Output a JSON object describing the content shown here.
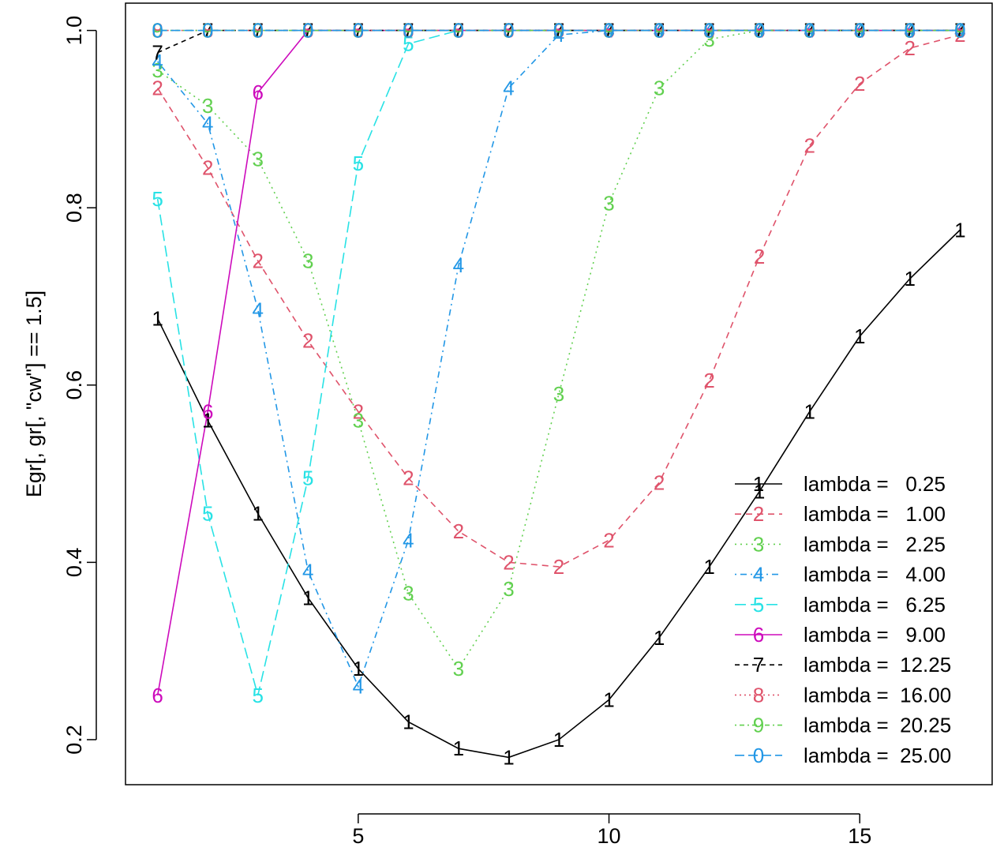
{
  "chart_data": {
    "type": "line",
    "title": "",
    "xlabel": "",
    "ylabel": "Egr[, gr[, \"cw\"] == 1.5]",
    "xlim": [
      0.36,
      17.64
    ],
    "ylim": [
      0.1492,
      1.0308
    ],
    "x_ticks": [
      5,
      10,
      15
    ],
    "x_tick_labels": [
      "5",
      "10",
      "15"
    ],
    "y_ticks": [
      0.2,
      0.4,
      0.6,
      0.8,
      1.0
    ],
    "y_tick_labels": [
      "0.2",
      "0.4",
      "0.6",
      "0.8",
      "1.0"
    ],
    "grid": false,
    "legend_position": "bottom-right",
    "x": [
      1,
      2,
      3,
      4,
      5,
      6,
      7,
      8,
      9,
      10,
      11,
      12,
      13,
      14,
      15,
      16,
      17
    ],
    "series": [
      {
        "name": "lambda =   0.25",
        "symbol": "1",
        "color": "#000000",
        "dash": "",
        "values": [
          0.675,
          0.56,
          0.455,
          0.36,
          0.28,
          0.22,
          0.19,
          0.18,
          0.2,
          0.245,
          0.315,
          0.395,
          0.48,
          0.57,
          0.655,
          0.72,
          0.775
        ]
      },
      {
        "name": "lambda =   1.00",
        "symbol": "2",
        "color": "#DF536B",
        "dash": "8,6",
        "values": [
          0.935,
          0.845,
          0.74,
          0.65,
          0.57,
          0.495,
          0.435,
          0.4,
          0.395,
          0.425,
          0.49,
          0.605,
          0.745,
          0.87,
          0.94,
          0.98,
          0.995
        ]
      },
      {
        "name": "lambda =   2.25",
        "symbol": "3",
        "color": "#61D04F",
        "dash": "2,5",
        "values": [
          0.955,
          0.915,
          0.855,
          0.74,
          0.56,
          0.365,
          0.28,
          0.37,
          0.59,
          0.805,
          0.935,
          0.99,
          1.0,
          1.0,
          1.0,
          1.0,
          1.0
        ]
      },
      {
        "name": "lambda =   4.00",
        "symbol": "4",
        "color": "#2297E6",
        "dash": "2,5,8,5",
        "values": [
          0.965,
          0.895,
          0.685,
          0.39,
          0.26,
          0.425,
          0.735,
          0.935,
          0.995,
          1.0,
          1.0,
          1.0,
          1.0,
          1.0,
          1.0,
          1.0,
          1.0
        ]
      },
      {
        "name": "lambda =   6.25",
        "symbol": "5",
        "color": "#28E2E5",
        "dash": "14,6",
        "values": [
          0.81,
          0.455,
          0.25,
          0.495,
          0.85,
          0.985,
          1.0,
          1.0,
          1.0,
          1.0,
          1.0,
          1.0,
          1.0,
          1.0,
          1.0,
          1.0,
          1.0
        ]
      },
      {
        "name": "lambda =   9.00",
        "symbol": "6",
        "color": "#CD0BBC",
        "dash": "",
        "values": [
          0.25,
          0.57,
          0.93,
          1.0,
          1.0,
          1.0,
          1.0,
          1.0,
          1.0,
          1.0,
          1.0,
          1.0,
          1.0,
          1.0,
          1.0,
          1.0,
          1.0
        ]
      },
      {
        "name": "lambda =  12.25",
        "symbol": "7",
        "color": "#000000",
        "dash": "6,5",
        "values": [
          0.975,
          1.0,
          1.0,
          1.0,
          1.0,
          1.0,
          1.0,
          1.0,
          1.0,
          1.0,
          1.0,
          1.0,
          1.0,
          1.0,
          1.0,
          1.0,
          1.0
        ]
      },
      {
        "name": "lambda =  16.00",
        "symbol": "8",
        "color": "#DF536B",
        "dash": "2,4",
        "values": [
          1.0,
          1.0,
          1.0,
          1.0,
          1.0,
          1.0,
          1.0,
          1.0,
          1.0,
          1.0,
          1.0,
          1.0,
          1.0,
          1.0,
          1.0,
          1.0,
          1.0
        ]
      },
      {
        "name": "lambda =  20.25",
        "symbol": "9",
        "color": "#61D04F",
        "dash": "2,4,6,4",
        "values": [
          1.0,
          1.0,
          1.0,
          1.0,
          1.0,
          1.0,
          1.0,
          1.0,
          1.0,
          1.0,
          1.0,
          1.0,
          1.0,
          1.0,
          1.0,
          1.0,
          1.0
        ]
      },
      {
        "name": "lambda =  25.00",
        "symbol": "0",
        "color": "#2297E6",
        "dash": "12,5",
        "values": [
          1.0,
          1.0,
          1.0,
          1.0,
          1.0,
          1.0,
          1.0,
          1.0,
          1.0,
          1.0,
          1.0,
          1.0,
          1.0,
          1.0,
          1.0,
          1.0,
          1.0
        ]
      }
    ]
  }
}
